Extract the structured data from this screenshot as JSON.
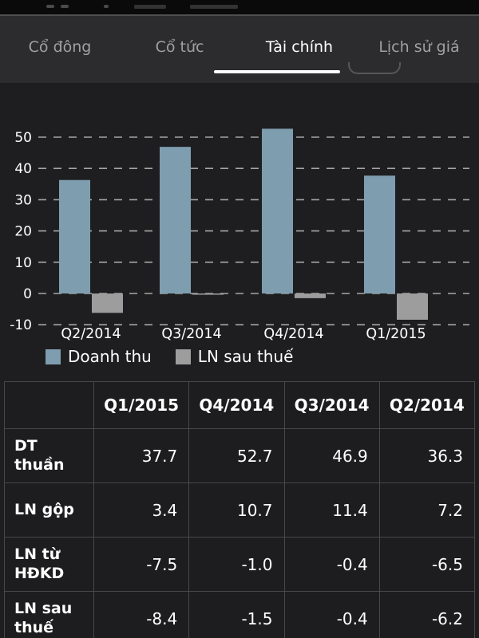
{
  "tab_bar": {
    "tabs": [
      {
        "label": "Cổ đông",
        "active": false
      },
      {
        "label": "Cổ tức",
        "active": false
      },
      {
        "label": "Tài chính",
        "active": true
      },
      {
        "label": "Lịch sử giá",
        "active": false
      }
    ]
  },
  "chart_data": {
    "type": "bar",
    "title": "",
    "categories": [
      "Q2/2014",
      "Q3/2014",
      "Q4/2014",
      "Q1/2015"
    ],
    "series": [
      {
        "name": "Doanh thu",
        "slug": "doanh-thu",
        "color": "#7e9eb0",
        "values": [
          36.3,
          46.9,
          52.7,
          37.7
        ]
      },
      {
        "name": "LN sau thuế",
        "slug": "ln-sau-thue",
        "color": "#9d9d9d",
        "values": [
          -6.2,
          -0.4,
          -1.5,
          -8.4
        ]
      }
    ],
    "ylim": [
      -10,
      55
    ],
    "yticks": [
      50,
      40,
      30,
      20,
      10,
      0,
      -10
    ],
    "grid": "dashed-horizontal",
    "legend_position": "bottom-left"
  },
  "table": {
    "headers": [
      "",
      "Q1/2015",
      "Q4/2014",
      "Q3/2014",
      "Q2/2014"
    ],
    "rows": [
      {
        "label": "DT thuần",
        "values": [
          "37.7",
          "52.7",
          "46.9",
          "36.3"
        ]
      },
      {
        "label": "LN gộp",
        "values": [
          "3.4",
          "10.7",
          "11.4",
          "7.2"
        ]
      },
      {
        "label": "LN từ HĐKD",
        "values": [
          "-7.5",
          "-1.0",
          "-0.4",
          "-6.5"
        ]
      },
      {
        "label": "LN sau thuế",
        "values": [
          "-8.4",
          "-1.5",
          "-0.4",
          "-6.2"
        ]
      }
    ]
  },
  "colors": {
    "background": "#1e1e20",
    "tab_bar_background": "#2c2c2e",
    "active_tab_underline": "#ffffff",
    "revenue_bar": "#7e9eb0",
    "profit_bar": "#9d9d9d",
    "gridline": "#a5a5a5",
    "table_border": "#484848",
    "text": "#ffffff",
    "inactive_tab_text": "#a0a0a0"
  }
}
